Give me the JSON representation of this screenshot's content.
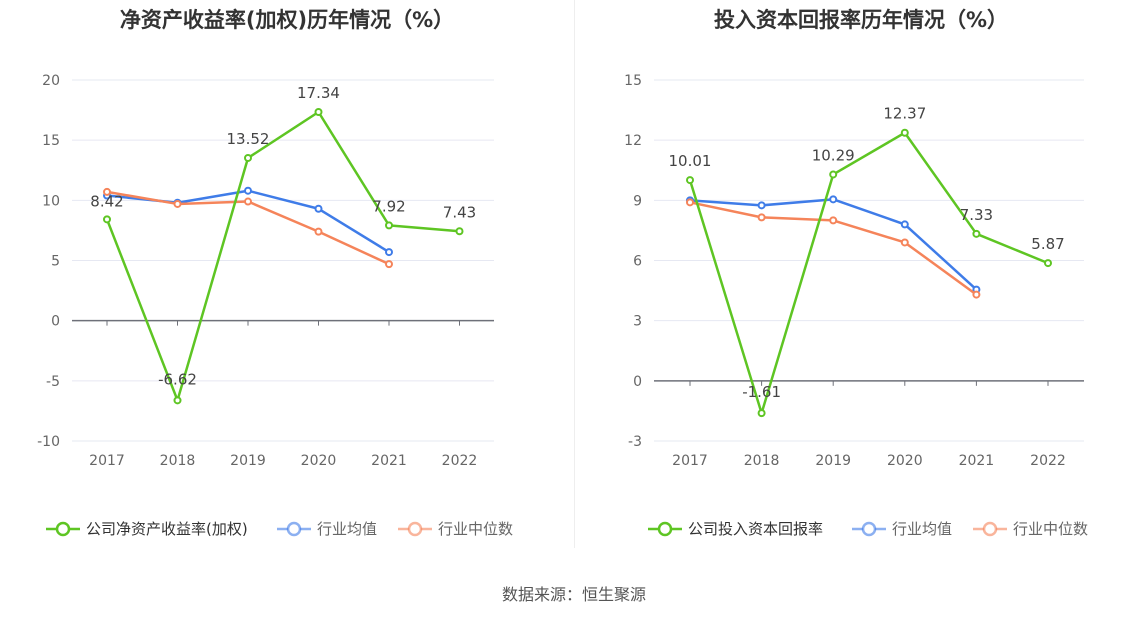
{
  "source_label": "数据来源：恒生聚源",
  "chart_data": [
    {
      "type": "line",
      "title": "净资产收益率(加权)历年情况（%）",
      "categories": [
        "2017",
        "2018",
        "2019",
        "2020",
        "2021",
        "2022"
      ],
      "ylim": [
        -10,
        20
      ],
      "yticks": [
        -10,
        -5,
        0,
        5,
        10,
        15,
        20
      ],
      "grid": true,
      "legend_position": "bottom",
      "series": [
        {
          "name": "公司净资产收益率(加权)",
          "color": "#5ec523",
          "values": [
            8.42,
            -6.62,
            13.52,
            17.34,
            7.92,
            7.43
          ],
          "labels": [
            "8.42",
            "-6.62",
            "13.52",
            "17.34",
            "7.92",
            "7.43"
          ]
        },
        {
          "name": "行业均值",
          "color": "#3f7ce8",
          "values": [
            10.4,
            9.8,
            10.8,
            9.3,
            5.7,
            null
          ]
        },
        {
          "name": "行业中位数",
          "color": "#f5845a",
          "values": [
            10.7,
            9.7,
            9.9,
            7.4,
            4.7,
            null
          ]
        }
      ]
    },
    {
      "type": "line",
      "title": "投入资本回报率历年情况（%）",
      "categories": [
        "2017",
        "2018",
        "2019",
        "2020",
        "2021",
        "2022"
      ],
      "ylim": [
        -3,
        15
      ],
      "yticks": [
        -3,
        0,
        3,
        6,
        9,
        12,
        15
      ],
      "grid": true,
      "legend_position": "bottom",
      "series": [
        {
          "name": "公司投入资本回报率",
          "color": "#5ec523",
          "values": [
            10.01,
            -1.61,
            10.29,
            12.37,
            7.33,
            5.87
          ],
          "labels": [
            "10.01",
            "-1.61",
            "10.29",
            "12.37",
            "7.33",
            "5.87"
          ]
        },
        {
          "name": "行业均值",
          "color": "#3f7ce8",
          "values": [
            9.0,
            8.75,
            9.05,
            7.8,
            4.55,
            null
          ]
        },
        {
          "name": "行业中位数",
          "color": "#f5845a",
          "values": [
            8.9,
            8.15,
            8.0,
            6.9,
            4.3,
            null
          ]
        }
      ]
    }
  ]
}
